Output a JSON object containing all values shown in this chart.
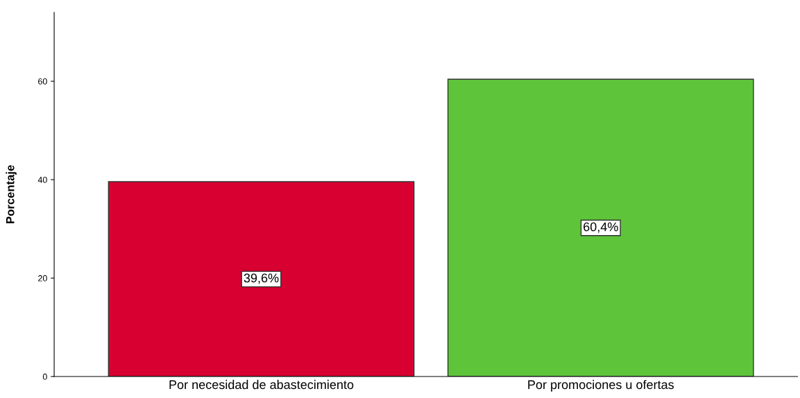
{
  "chart_data": {
    "type": "bar",
    "ylabel": "Porcentaje",
    "categories": [
      "Por necesidad de abastecimiento",
      "Por promociones u ofertas"
    ],
    "values": [
      39.6,
      60.4
    ],
    "colors": [
      "#d70030",
      "#5ec43a"
    ],
    "value_labels": [
      "39,6%",
      "60,4%"
    ],
    "ylim": [
      0,
      74
    ],
    "yticks": [
      0,
      20,
      40,
      60
    ],
    "grid": false
  }
}
